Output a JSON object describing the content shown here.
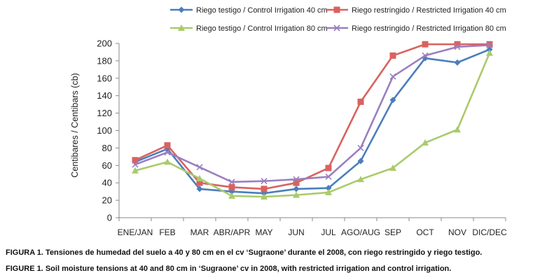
{
  "chart_data": {
    "type": "line",
    "categories": [
      "ENE/JAN",
      "FEB",
      "MAR",
      "ABR/APR",
      "MAY",
      "JUN",
      "JUL",
      "AGO/AUG",
      "SEP",
      "OCT",
      "NOV",
      "DIC/DEC"
    ],
    "ylabel": "Centibares / Centibars (cb)",
    "ylim": [
      0,
      200
    ],
    "yticks": [
      0,
      20,
      40,
      60,
      80,
      100,
      120,
      140,
      160,
      180,
      200
    ],
    "grid": false,
    "legend_position": "top",
    "series": [
      {
        "name": "Riego testigo / Control Irrigation 40 cm",
        "color": "#4a7ebb",
        "marker": "diamond",
        "values": [
          64,
          79,
          33,
          30,
          28,
          33,
          34,
          65,
          135,
          183,
          178,
          193
        ]
      },
      {
        "name": "Riego restringido / Restricted Irrigation 40 cm",
        "color": "#d9625f",
        "marker": "square",
        "values": [
          66,
          83,
          40,
          35,
          33,
          40,
          57,
          133,
          186,
          199,
          199,
          199
        ]
      },
      {
        "name": "Riego testigo / Control Irrigation 80 cm",
        "color": "#a9cb6b",
        "marker": "triangle",
        "values": [
          54,
          64,
          45,
          25,
          24,
          26,
          29,
          44,
          57,
          86,
          101,
          189
        ]
      },
      {
        "name": "Riego restringido / Restricted Irrigation 80 cm",
        "color": "#9b7fc0",
        "marker": "x",
        "values": [
          61,
          75,
          58,
          41,
          42,
          44,
          47,
          80,
          162,
          186,
          196,
          198
        ]
      }
    ]
  },
  "captions": {
    "spanish": "FIGURA 1. Tensiones de humedad del suelo a 40 y 80 cm en el cv ‘Sugraone’ durante el 2008, con riego restringido y riego testigo.",
    "english": "FIGURE 1. Soil moisture tensions at 40 and 80 cm in ‘Sugraone’ cv in 2008, with restricted irrigation and control irrigation."
  }
}
